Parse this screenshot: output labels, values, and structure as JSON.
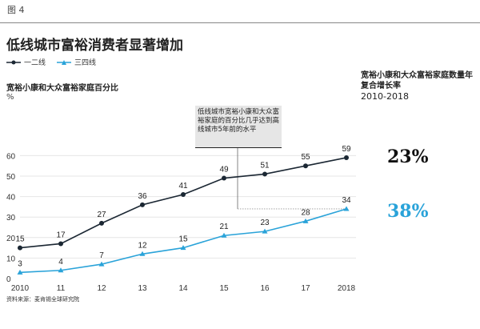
{
  "figure_label": "图 4",
  "chart_data": {
    "type": "line",
    "title": "低线城市富裕消费者显著增加",
    "ylabel": "宽裕小康和大众富裕家庭百分比",
    "yunit": "%",
    "categories": [
      "2010",
      "11",
      "12",
      "13",
      "14",
      "15",
      "16",
      "17",
      "2018"
    ],
    "ylim": [
      0,
      60
    ],
    "yticks": [
      0,
      10,
      20,
      30,
      40,
      50,
      60
    ],
    "grid": true,
    "legend_position": "top-left",
    "series": [
      {
        "name": "一二线",
        "color": "#1b2733",
        "marker": "circle",
        "values": [
          15,
          17,
          27,
          36,
          41,
          49,
          51,
          55,
          59
        ]
      },
      {
        "name": "三四线",
        "color": "#2aa3d9",
        "marker": "triangle",
        "values": [
          3,
          4,
          7,
          12,
          15,
          21,
          23,
          28,
          34
        ]
      }
    ],
    "annotation": {
      "text": "低线城市宽裕小康和大众富裕家庭的百分比几乎达到高线城市5年前的水平",
      "reference_value": 34
    },
    "side_panel": {
      "title": "宽裕小康和大众富裕家庭数量年复合增长率",
      "period": "2010-2018",
      "values": [
        "23%",
        "38%"
      ]
    }
  },
  "source": "资料来源：麦肯锡全球研究院"
}
